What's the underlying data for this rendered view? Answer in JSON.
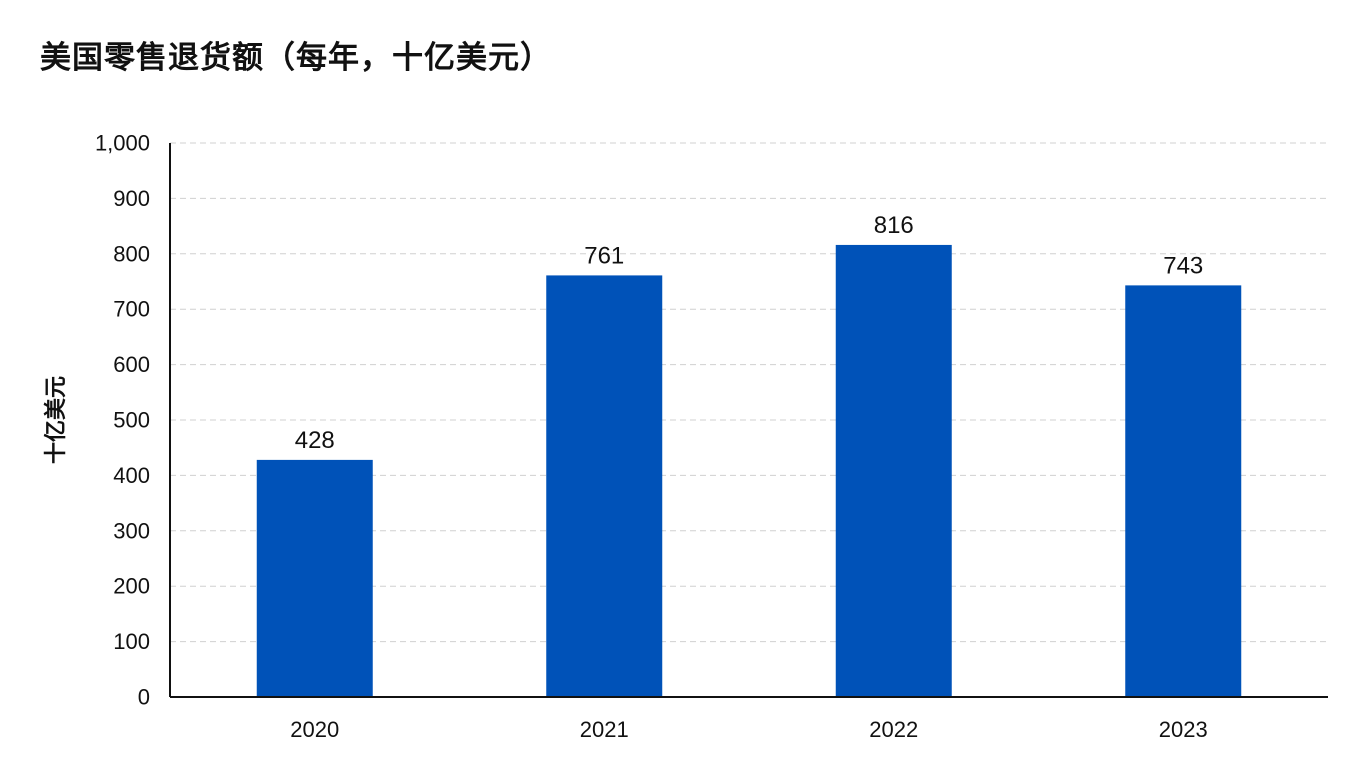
{
  "chart_data": {
    "type": "bar",
    "title": "美国零售退货额（每年，十亿美元）",
    "ylabel": "十亿美元",
    "xlabel": "",
    "categories": [
      "2020",
      "2021",
      "2022",
      "2023"
    ],
    "values": [
      428,
      761,
      816,
      743
    ],
    "ylim": [
      0,
      1000
    ],
    "yticks": [
      0,
      100,
      200,
      300,
      400,
      500,
      600,
      700,
      800,
      900,
      1000
    ],
    "ytick_labels": [
      "0",
      "100",
      "200",
      "300",
      "400",
      "500",
      "600",
      "700",
      "800",
      "900",
      "1,000"
    ],
    "grid": true,
    "data_labels": true,
    "bar_color": "#0052b8",
    "grid_color": "#d0d0d0",
    "axis_color": "#111111"
  }
}
